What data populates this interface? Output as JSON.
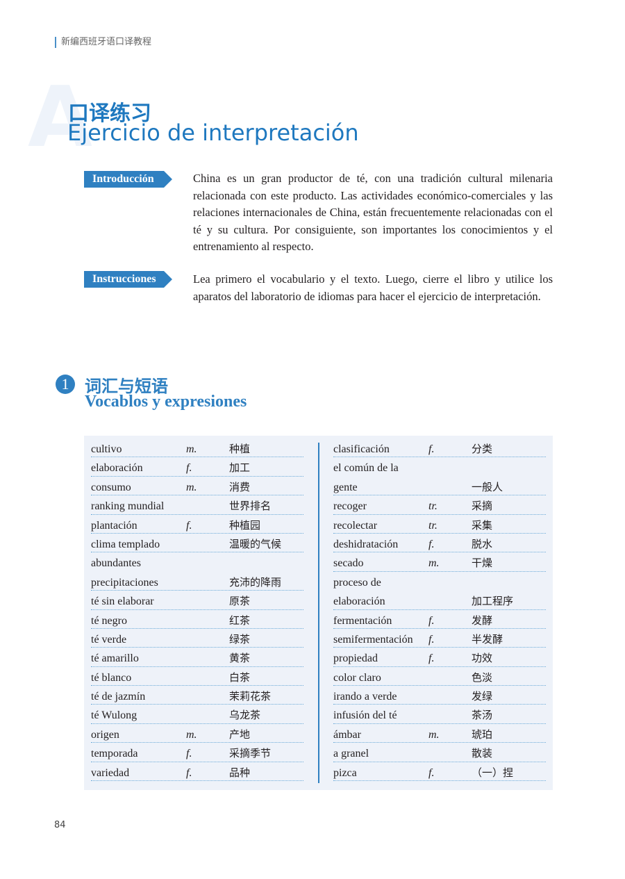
{
  "header": {
    "running_title": "新编西班牙语口译教程"
  },
  "section": {
    "letter": "A",
    "title_zh": "口译练习",
    "title_es": "Ejercicio de interpretación"
  },
  "intro": {
    "label": "Introducción",
    "text": "China es un gran productor de té, con una tradición cultural milenaria relacionada con este producto. Las actividades económico-comerciales y las relaciones internacionales de China, están frecuentemente relacionadas con el té y su cultura. Por consiguiente, son importantes los conocimientos y el entrenamiento al respecto."
  },
  "instructions": {
    "label": "Instrucciones",
    "text": "Lea primero el vocabulario y el texto. Luego, cierre el libro y utilice los aparatos  del laboratorio de idiomas para hacer el ejercicio de interpretación."
  },
  "vocab": {
    "number": "1",
    "title_zh": "词汇与短语",
    "title_es": "Vocablos y expresiones",
    "left": [
      {
        "es": "cultivo",
        "g": "m.",
        "zh": "种植"
      },
      {
        "es": "elaboración",
        "g": "f.",
        "zh": "加工"
      },
      {
        "es": "consumo",
        "g": "m.",
        "zh": "消费"
      },
      {
        "es": "ranking mundial",
        "g": "",
        "zh": "世界排名"
      },
      {
        "es": "plantación",
        "g": "f.",
        "zh": "种植园"
      },
      {
        "es": "clima templado",
        "g": "",
        "zh": "温暖的气候"
      },
      {
        "es": "abundantes",
        "es2": "precipitaciones",
        "g": "",
        "zh": "充沛的降雨"
      },
      {
        "es": "té sin elaborar",
        "g": "",
        "zh": "原茶"
      },
      {
        "es": "té negro",
        "g": "",
        "zh": "红茶"
      },
      {
        "es": "té verde",
        "g": "",
        "zh": "绿茶"
      },
      {
        "es": "té amarillo",
        "g": "",
        "zh": "黄茶"
      },
      {
        "es": "té blanco",
        "g": "",
        "zh": "白茶"
      },
      {
        "es": "té de jazmín",
        "g": "",
        "zh": "茉莉花茶"
      },
      {
        "es": "té Wulong",
        "g": "",
        "zh": "乌龙茶"
      },
      {
        "es": "origen",
        "g": "m.",
        "zh": "产地"
      },
      {
        "es": "temporada",
        "g": "f.",
        "zh": "采摘季节"
      },
      {
        "es": "variedad",
        "g": "f.",
        "zh": "品种"
      }
    ],
    "right": [
      {
        "es": "clasificación",
        "g": "f.",
        "zh": "分类"
      },
      {
        "es": "el común de la",
        "es2": "gente",
        "g": "",
        "zh": "一般人"
      },
      {
        "es": "recoger",
        "g": "tr.",
        "zh": "采摘"
      },
      {
        "es": "recolectar",
        "g": "tr.",
        "zh": "采集"
      },
      {
        "es": "deshidratación",
        "g": "f.",
        "zh": "脱水"
      },
      {
        "es": "secado",
        "g": "m.",
        "zh": "干燥"
      },
      {
        "es": "proceso de",
        "es2": "elaboración",
        "g": "",
        "zh": "加工程序"
      },
      {
        "es": "fermentación",
        "g": "f.",
        "zh": "发酵"
      },
      {
        "es": "semifermentación",
        "g": "f.",
        "zh": "半发酵"
      },
      {
        "es": "propiedad",
        "g": "f.",
        "zh": "功效"
      },
      {
        "es": "color claro",
        "g": "",
        "zh": "色淡"
      },
      {
        "es": "irando a verde",
        "g": "",
        "zh": "发绿"
      },
      {
        "es": "infusión del té",
        "g": "",
        "zh": "茶汤"
      },
      {
        "es": "ámbar",
        "g": "m.",
        "zh": "琥珀"
      },
      {
        "es": "a granel",
        "g": "",
        "zh": "散装"
      },
      {
        "es": "pizca",
        "g": "f.",
        "zh": "（一）捏"
      }
    ]
  },
  "footer": {
    "page_number": "84"
  }
}
